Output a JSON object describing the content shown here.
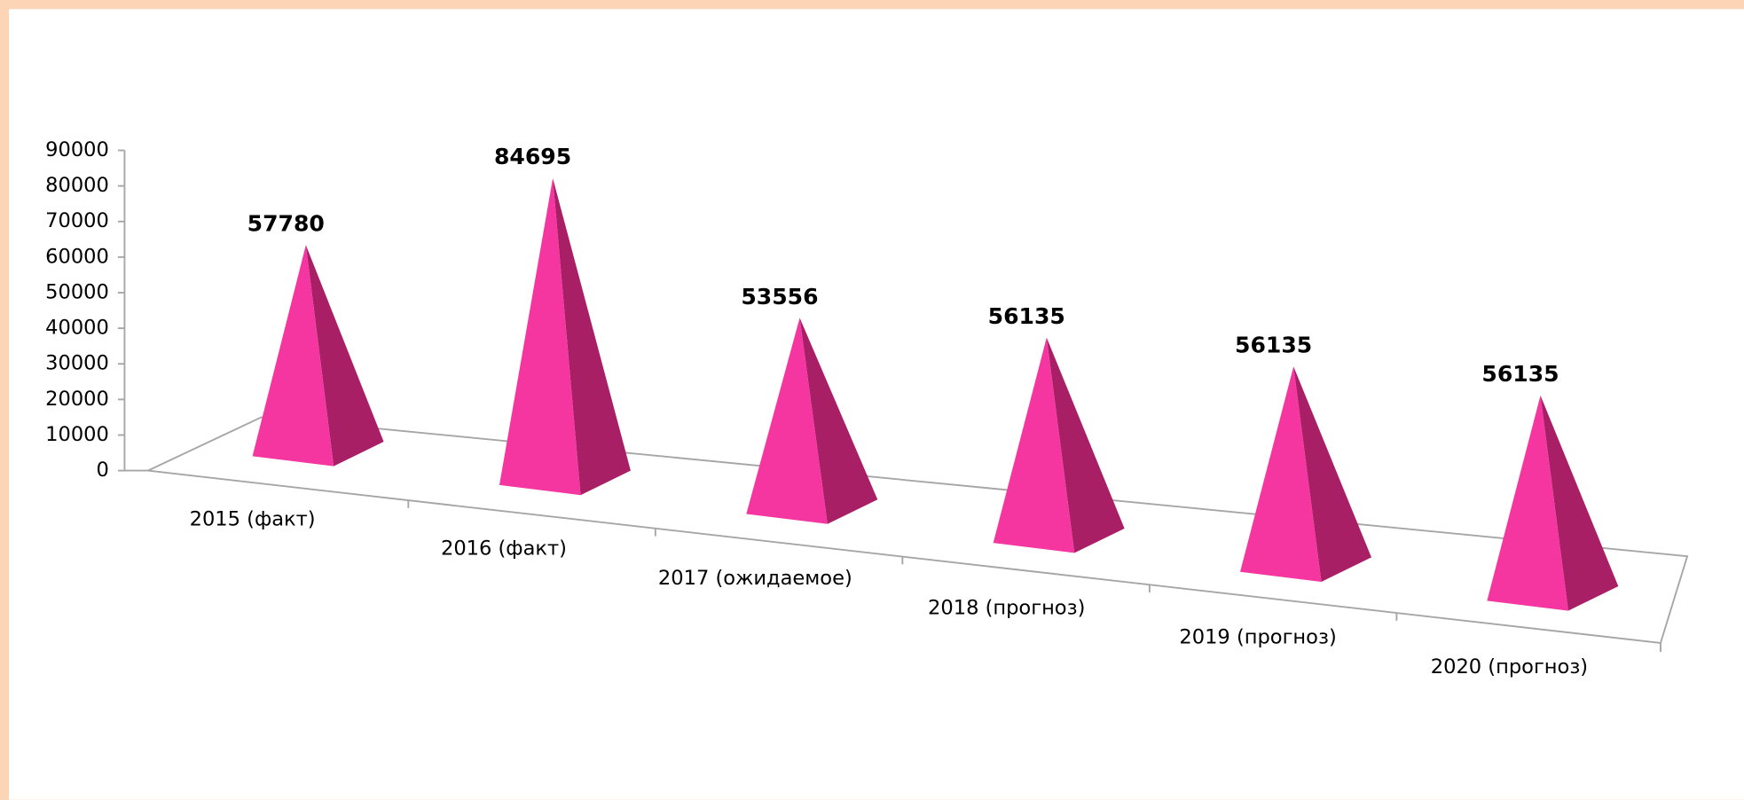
{
  "chart_data": {
    "type": "pyramid",
    "categories": [
      "2015 (факт)",
      "2016 (факт)",
      "2017 (ожидаемое)",
      "2018 (прогноз)",
      "2019 (прогноз)",
      "2020 (прогноз)"
    ],
    "values": [
      57780,
      84695,
      53556,
      56135,
      56135,
      56135
    ],
    "color": "#f535a0",
    "side_color": "#a81f66",
    "ylim": [
      0,
      90000
    ],
    "yticks": [
      0,
      10000,
      20000,
      30000,
      40000,
      50000,
      60000,
      70000,
      80000,
      90000
    ]
  }
}
